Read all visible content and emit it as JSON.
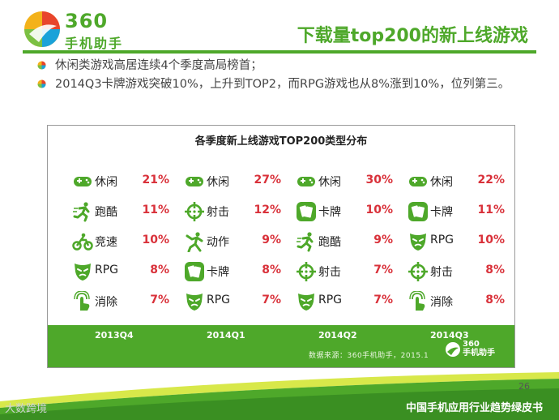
{
  "header": {
    "logo_number": "360",
    "logo_cn": "手机助手",
    "title": "下载量top200的新上线游戏"
  },
  "bullets": [
    "休闲类游戏高居连续4个季度高局榜首；",
    "2014Q3卡牌游戏突破10%，上升到TOP2，而RPG游戏也从8%涨到10%，位列第三。"
  ],
  "panel": {
    "title": "各季度新上线游戏TOP200类型分布",
    "quarters": [
      {
        "name": "2013Q4",
        "rows": [
          {
            "icon": "gamepad-icon",
            "label": "休闲",
            "pct": "21%"
          },
          {
            "icon": "runner-icon",
            "label": "跑酷",
            "pct": "11%"
          },
          {
            "icon": "motorbike-icon",
            "label": "竞速",
            "pct": "10%"
          },
          {
            "icon": "mask-icon",
            "label": "RPG",
            "pct": "8%"
          },
          {
            "icon": "tap-icon",
            "label": "消除",
            "pct": "7%"
          }
        ]
      },
      {
        "name": "2014Q1",
        "rows": [
          {
            "icon": "gamepad-icon",
            "label": "休闲",
            "pct": "27%"
          },
          {
            "icon": "crosshair-icon",
            "label": "射击",
            "pct": "12%"
          },
          {
            "icon": "fighter-icon",
            "label": "动作",
            "pct": "9%"
          },
          {
            "icon": "cards-icon",
            "label": "卡牌",
            "pct": "8%"
          },
          {
            "icon": "mask-icon",
            "label": "RPG",
            "pct": "7%"
          }
        ]
      },
      {
        "name": "2014Q2",
        "rows": [
          {
            "icon": "gamepad-icon",
            "label": "休闲",
            "pct": "30%"
          },
          {
            "icon": "cards-icon",
            "label": "卡牌",
            "pct": "10%"
          },
          {
            "icon": "runner-icon",
            "label": "跑酷",
            "pct": "9%"
          },
          {
            "icon": "crosshair-icon",
            "label": "射击",
            "pct": "7%"
          },
          {
            "icon": "mask-icon",
            "label": "RPG",
            "pct": "7%"
          }
        ]
      },
      {
        "name": "2014Q3",
        "rows": [
          {
            "icon": "gamepad-icon",
            "label": "休闲",
            "pct": "22%"
          },
          {
            "icon": "cards-icon",
            "label": "卡牌",
            "pct": "11%"
          },
          {
            "icon": "mask-icon",
            "label": "RPG",
            "pct": "10%"
          },
          {
            "icon": "crosshair-icon",
            "label": "射击",
            "pct": "8%"
          },
          {
            "icon": "tap-icon",
            "label": "消除",
            "pct": "8%"
          }
        ]
      }
    ],
    "source": "数据来源：360手机助手，2015.1",
    "band_logo_number": "360",
    "band_logo_cn": "手机助手"
  },
  "footer": {
    "page_number": "26",
    "report_title": "中国手机应用行业趋势绿皮书",
    "watermark": "大数跨境"
  },
  "colors": {
    "brand_green": "#4ea82a",
    "percent_red": "#d9313a"
  }
}
